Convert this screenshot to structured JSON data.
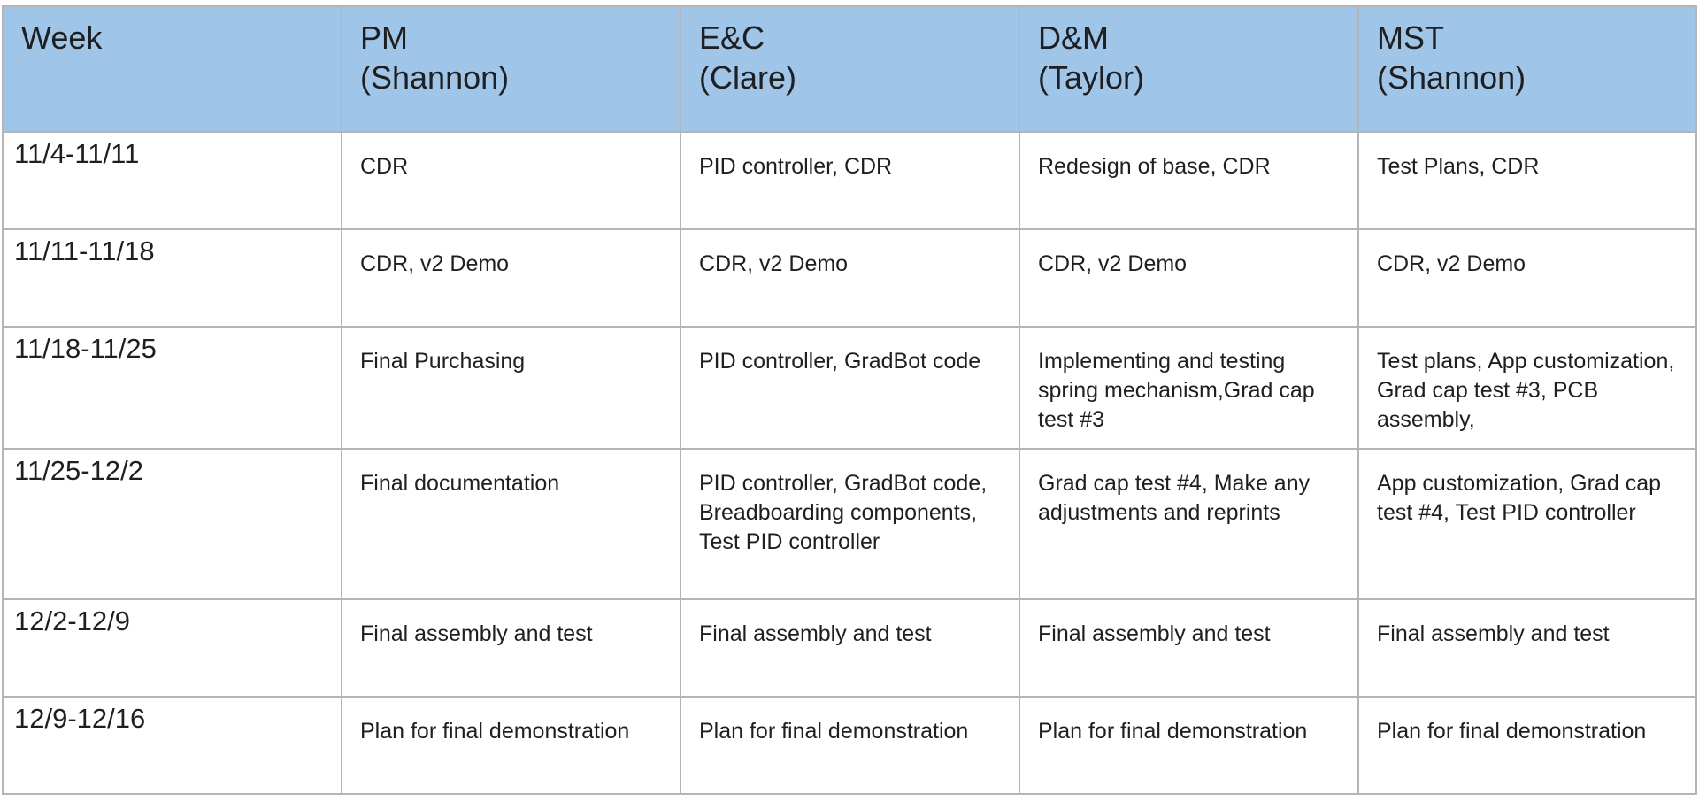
{
  "table": {
    "headers": [
      {
        "line1": "Week",
        "line2": ""
      },
      {
        "line1": "PM",
        "line2": "(Shannon)"
      },
      {
        "line1": "E&C",
        "line2": "(Clare)"
      },
      {
        "line1": "D&M",
        "line2": "(Taylor)"
      },
      {
        "line1": "MST",
        "line2": "(Shannon)"
      }
    ],
    "rows": [
      {
        "week": "11/4-11/11",
        "pm": "CDR",
        "ec": "PID controller, CDR",
        "dm": "Redesign of base, CDR",
        "mst": "Test Plans, CDR"
      },
      {
        "week": "11/11-11/18",
        "pm": "CDR, v2 Demo",
        "ec": "CDR, v2 Demo",
        "dm": "CDR, v2 Demo",
        "mst": "CDR, v2 Demo"
      },
      {
        "week": "11/18-11/25",
        "pm": "Final Purchasing",
        "ec": "PID controller, GradBot code",
        "dm": "Implementing and testing spring mechanism,Grad cap test #3",
        "mst": "Test plans, App customization, Grad cap test #3, PCB assembly,"
      },
      {
        "week": "11/25-12/2",
        "pm": "Final documentation",
        "ec": "PID controller, GradBot code, Breadboarding components, Test PID controller",
        "dm": "Grad cap test #4, Make any adjustments and reprints",
        "mst": "App customization, Grad cap test #4, Test PID controller"
      },
      {
        "week": "12/2-12/9",
        "pm": "Final assembly and test",
        "ec": "Final assembly and test",
        "dm": "Final assembly and test",
        "mst": "Final assembly and test"
      },
      {
        "week": "12/9-12/16",
        "pm": "Plan for final demonstration",
        "ec": "Plan for final demonstration",
        "dm": "Plan for final demonstration",
        "mst": "Plan for final demonstration"
      }
    ]
  },
  "colors": {
    "header_background": "#9fc5e8",
    "border": "#b5b5b5",
    "text": "#1f1f1f"
  }
}
